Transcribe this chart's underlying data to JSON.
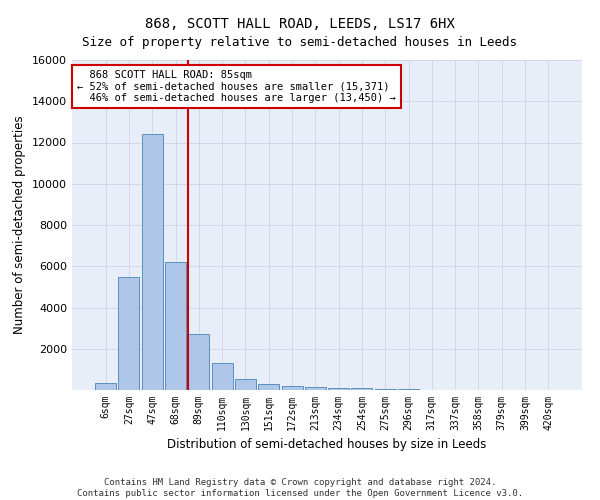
{
  "title": "868, SCOTT HALL ROAD, LEEDS, LS17 6HX",
  "subtitle": "Size of property relative to semi-detached houses in Leeds",
  "xlabel": "Distribution of semi-detached houses by size in Leeds",
  "ylabel": "Number of semi-detached properties",
  "bar_labels": [
    "6sqm",
    "27sqm",
    "47sqm",
    "68sqm",
    "89sqm",
    "110sqm",
    "130sqm",
    "151sqm",
    "172sqm",
    "213sqm",
    "234sqm",
    "254sqm",
    "275sqm",
    "296sqm",
    "317sqm",
    "337sqm",
    "358sqm",
    "379sqm",
    "399sqm",
    "420sqm"
  ],
  "bar_values": [
    320,
    5500,
    12400,
    6200,
    2700,
    1300,
    550,
    280,
    200,
    150,
    100,
    80,
    60,
    50,
    0,
    0,
    0,
    0,
    0,
    0
  ],
  "bar_color": "#aec6e8",
  "bar_edgecolor": "#5a8fc0",
  "property_label": "868 SCOTT HALL ROAD: 85sqm",
  "pct_smaller": 52,
  "pct_smaller_count": "15,371",
  "pct_larger": 46,
  "pct_larger_count": "13,450",
  "vline_x_index": 3.55,
  "annotation_box_edgecolor": "#cc0000",
  "vline_color": "#cc0000",
  "ylim": [
    0,
    16000
  ],
  "yticks": [
    0,
    2000,
    4000,
    6000,
    8000,
    10000,
    12000,
    14000,
    16000
  ],
  "grid_color": "#d0d8e8",
  "bg_color": "#e8eef8",
  "footer": "Contains HM Land Registry data © Crown copyright and database right 2024.\nContains public sector information licensed under the Open Government Licence v3.0.",
  "title_fontsize": 10,
  "subtitle_fontsize": 9,
  "xlabel_fontsize": 8.5,
  "ylabel_fontsize": 8.5,
  "annot_fontsize": 7.5
}
